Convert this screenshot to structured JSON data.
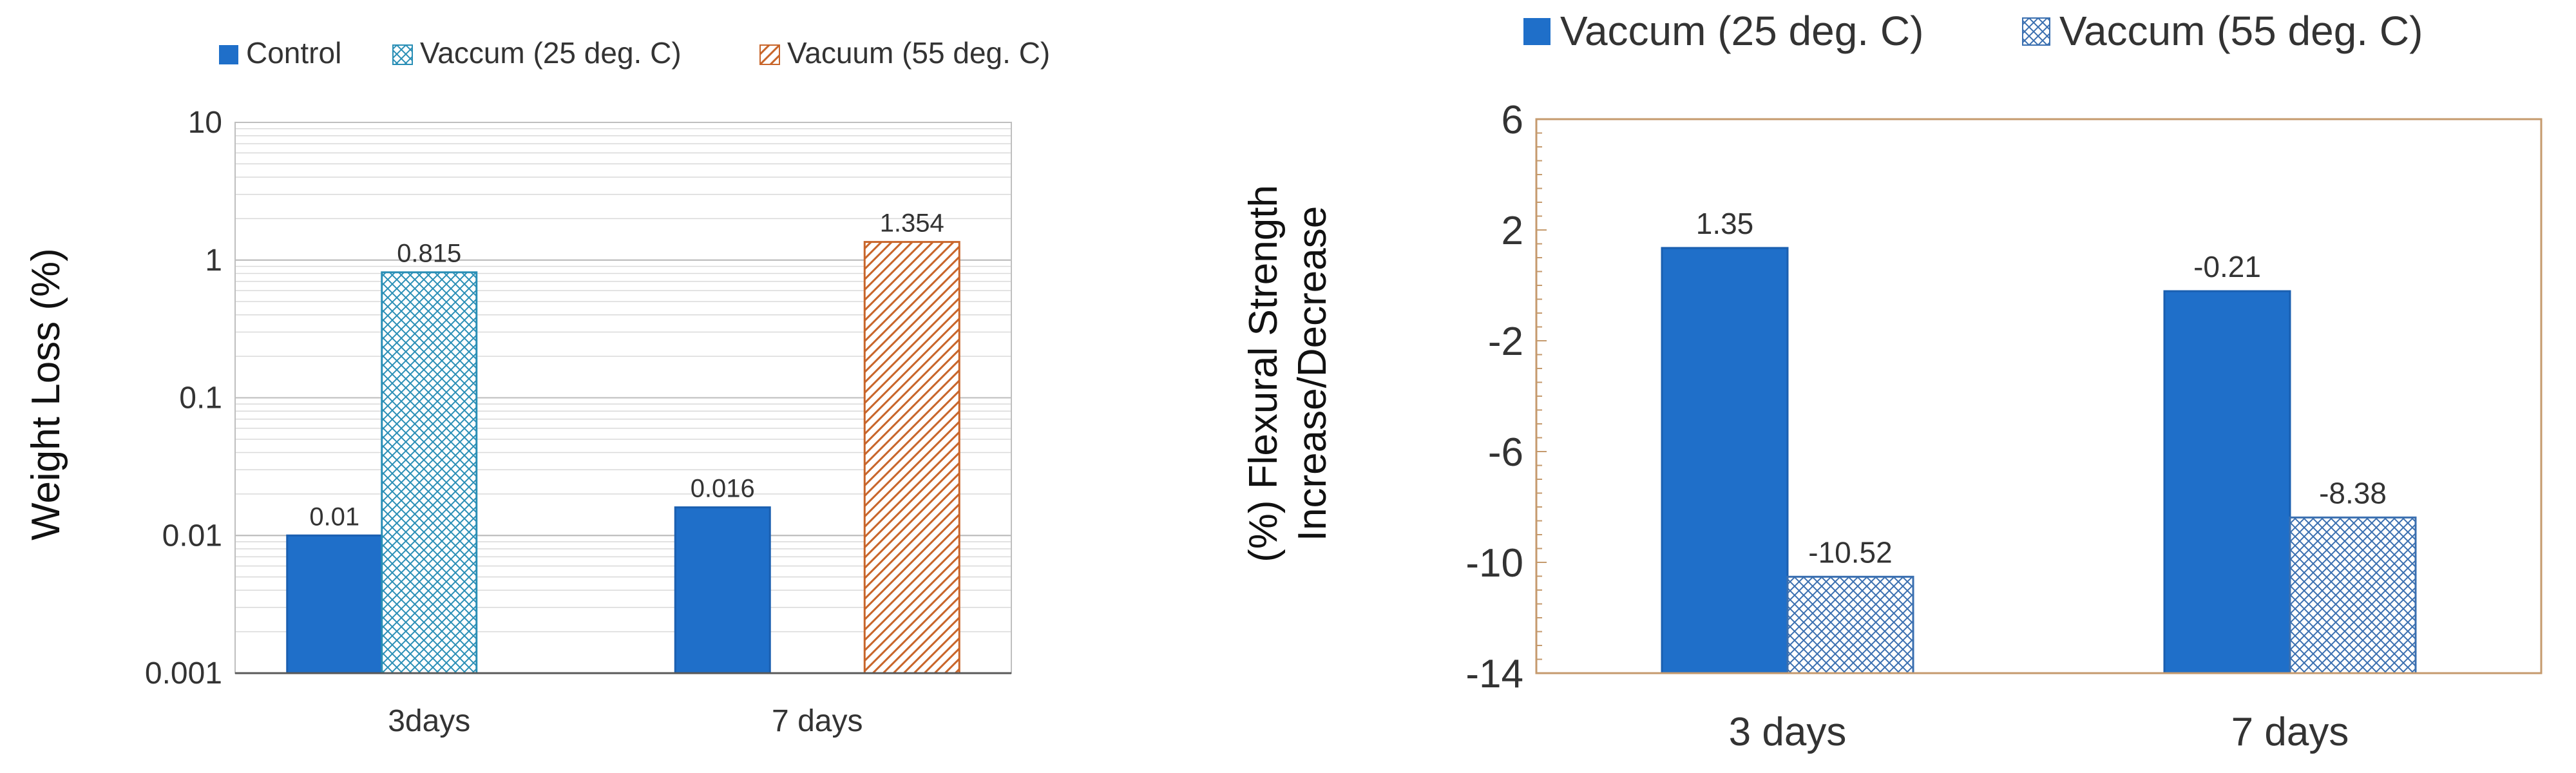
{
  "chart_data": [
    {
      "type": "bar",
      "y_scale": "log",
      "ylabel": "Weight Loss (%)",
      "xlabel": "",
      "ylim": [
        0.001,
        10
      ],
      "y_ticks": [
        "0.001",
        "0.01",
        "0.1",
        "1",
        "10"
      ],
      "categories": [
        "3days",
        "7 days"
      ],
      "series": [
        {
          "name": "Control",
          "values": [
            0.01,
            0.016
          ],
          "labels": [
            "0.01",
            "0.016"
          ],
          "color": "#1f6fc9",
          "pattern": "solid"
        },
        {
          "name": "Vaccum (25 deg. C)",
          "values": [
            0.815,
            null
          ],
          "labels": [
            "0.815",
            ""
          ],
          "color": "#2a8fb6",
          "pattern": "crosshatch"
        },
        {
          "name": "Vacuum (55 deg. C)",
          "values": [
            null,
            1.354
          ],
          "labels": [
            "",
            "1.354"
          ],
          "color": "#c8652a",
          "pattern": "diagonal"
        }
      ],
      "legend_position": "top",
      "grid": true
    },
    {
      "type": "bar",
      "y_scale": "linear",
      "ylabel": "(%) Flexural Strength Increase/Decrease",
      "ylabel_lines": [
        "(%) Flexural Strength",
        "Increase/Decrease"
      ],
      "xlabel": "",
      "ylim": [
        -14,
        6
      ],
      "y_ticks": [
        "6",
        "2",
        "-2",
        "-6",
        "-10",
        "-14"
      ],
      "categories": [
        "3 days",
        "7 days"
      ],
      "series": [
        {
          "name": "Vaccum (25 deg. C)",
          "values": [
            1.35,
            -0.21
          ],
          "labels": [
            "1.35",
            "-0.21"
          ],
          "color": "#1f6fc9",
          "pattern": "solid"
        },
        {
          "name": "Vaccum (55 deg. C)",
          "values": [
            -10.52,
            -8.38
          ],
          "labels": [
            "-10.52",
            "-8.38"
          ],
          "color": "#3a6fb0",
          "pattern": "crosshatch"
        }
      ],
      "legend_position": "top",
      "grid": false
    }
  ]
}
